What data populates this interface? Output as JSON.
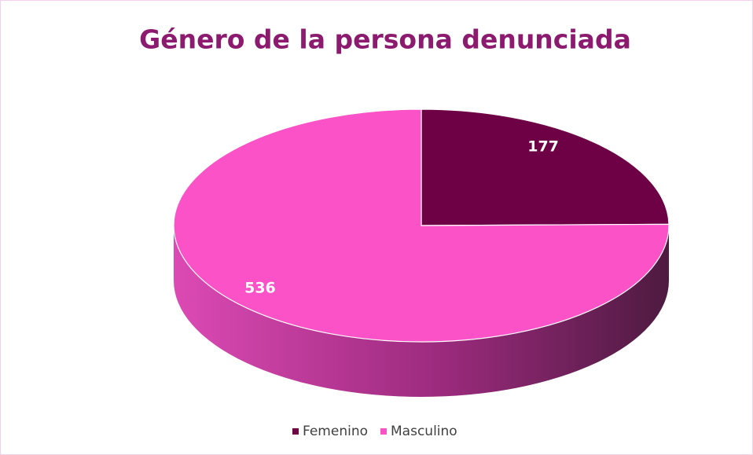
{
  "chart_data": {
    "type": "pie",
    "title": "Género de la persona denunciada",
    "categories": [
      "Femenino",
      "Masculino"
    ],
    "values": [
      177,
      536
    ],
    "colors": [
      "#6e0045",
      "#fc52c8"
    ],
    "legend": "bottom"
  }
}
